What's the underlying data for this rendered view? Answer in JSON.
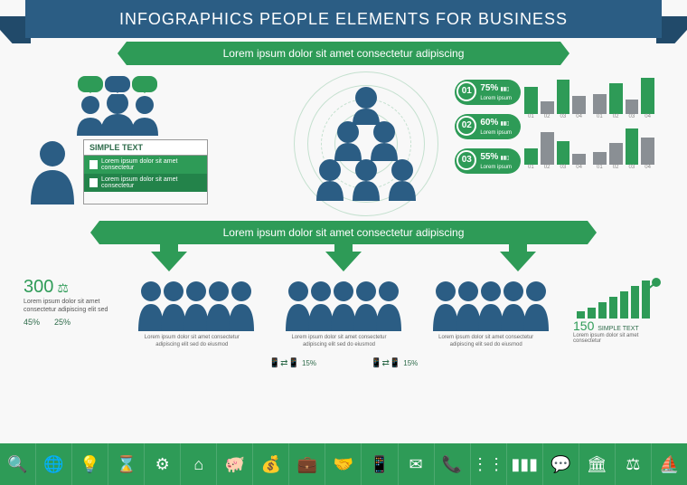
{
  "palette": {
    "primary_blue": "#2b5d84",
    "dark_blue": "#214a6a",
    "green": "#2e9b57",
    "dark_green": "#23834a",
    "grey": "#8a8f94",
    "bg": "#f8f8f8",
    "white": "#ffffff"
  },
  "banner": {
    "title": "INFOGRAPHICS PEOPLE ELEMENTS FOR BUSINESS",
    "subtitle": "Lorem ipsum dolor sit amet  consectetur adipiscing"
  },
  "simple_box": {
    "header": "SIMPLE TEXT",
    "lines": [
      "Lorem ipsum dolor sit amet consectetur",
      "Lorem ipsum dolor sit amet consectetur"
    ]
  },
  "stats": [
    {
      "num": "01",
      "pct": "75%",
      "sub": "Lorem ipsum"
    },
    {
      "num": "02",
      "pct": "60%",
      "sub": "Lorem ipsum"
    },
    {
      "num": "03",
      "pct": "55%",
      "sub": "Lorem ipsum"
    }
  ],
  "mini_charts": [
    {
      "values": [
        30,
        14,
        38,
        20
      ],
      "colors": [
        "#2e9b57",
        "#8a8f94",
        "#2e9b57",
        "#8a8f94"
      ],
      "labels": [
        "01",
        "02",
        "03",
        "04"
      ]
    },
    {
      "values": [
        22,
        34,
        16,
        40
      ],
      "colors": [
        "#8a8f94",
        "#2e9b57",
        "#8a8f94",
        "#2e9b57"
      ],
      "labels": [
        "01",
        "02",
        "03",
        "04"
      ]
    },
    {
      "values": [
        18,
        36,
        26,
        12
      ],
      "colors": [
        "#2e9b57",
        "#8a8f94",
        "#2e9b57",
        "#8a8f94"
      ],
      "labels": [
        "01",
        "02",
        "03",
        "04"
      ]
    },
    {
      "values": [
        14,
        24,
        40,
        30
      ],
      "colors": [
        "#8a8f94",
        "#8a8f94",
        "#2e9b57",
        "#8a8f94"
      ],
      "labels": [
        "01",
        "02",
        "03",
        "04"
      ]
    }
  ],
  "ribbon2": "Lorem ipsum dolor sit amet  consectetur adipiscing",
  "left_stat": {
    "value": "300",
    "lorem": "Lorem ipsum dolor sit amet consectetur adipiscing elit sed",
    "pcts": [
      "45%",
      "25%"
    ]
  },
  "right_stat": {
    "value": "150",
    "label": "SIMPLE TEXT",
    "lorem": "Lorem ipsum dolor sit amet consectetur",
    "bars": [
      8,
      12,
      18,
      24,
      30,
      36,
      42
    ]
  },
  "group_text": "Lorem ipsum dolor sit amet consectetur adipiscing elit sed do eiusmod",
  "bottom_pcts": [
    "15%",
    "15%"
  ],
  "icon_names": [
    "search-globe-icon",
    "globe-target-icon",
    "lightbulb-icon",
    "hourglass-icon",
    "gear-icon",
    "house-icon",
    "piggy-bank-icon",
    "money-bag-icon",
    "briefcase-icon",
    "handshake-icon",
    "device-sync-icon",
    "envelope-icon",
    "phone-icon",
    "chart-dots-icon",
    "bar-chart-icon",
    "chat-icon",
    "bank-icon",
    "scales-icon",
    "ship-icon"
  ]
}
